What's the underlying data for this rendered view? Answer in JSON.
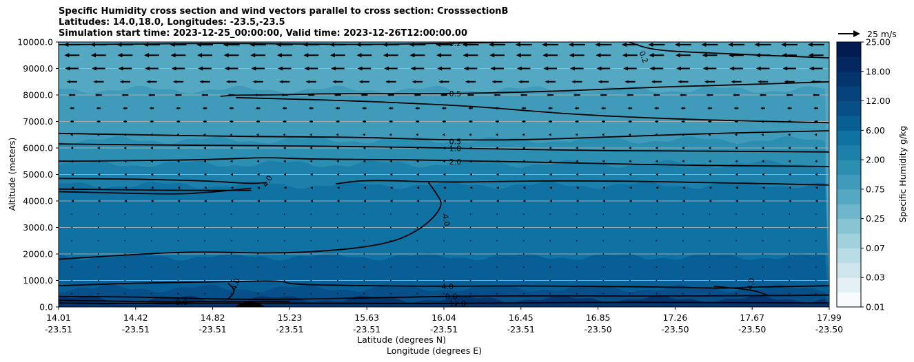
{
  "chart_data": {
    "type": "heatmap",
    "title_lines": [
      "Specific Humidity cross section and wind vectors parallel to cross section: CrosssectionB",
      "Latitudes: 14.0,18.0, Longitudes: -23.5,-23.5",
      "Simulation start time: 2023-12-25_00:00:00, Valid time: 2023-12-26T12:00:00.00"
    ],
    "xlabel_lat": "Latitude (degrees N)",
    "xlabel_lon": "Longitude (degrees E)",
    "ylabel": "Altitude (meters)",
    "ylim": [
      0,
      10000
    ],
    "y_ticks": [
      {
        "value": 0,
        "label": "0.0"
      },
      {
        "value": 1000,
        "label": "1000.0"
      },
      {
        "value": 2000,
        "label": "2000.0"
      },
      {
        "value": 3000,
        "label": "3000.0"
      },
      {
        "value": 4000,
        "label": "4000.0"
      },
      {
        "value": 5000,
        "label": "5000.0"
      },
      {
        "value": 6000,
        "label": "6000.0"
      },
      {
        "value": 7000,
        "label": "7000.0"
      },
      {
        "value": 8000,
        "label": "8000.0"
      },
      {
        "value": 9000,
        "label": "9000.0"
      },
      {
        "value": 10000,
        "label": "10000.0"
      }
    ],
    "x_ticks": [
      {
        "pos": 0.0,
        "lat": "14.01",
        "lon": "-23.51"
      },
      {
        "pos": 0.1,
        "lat": "14.42",
        "lon": "-23.51"
      },
      {
        "pos": 0.2,
        "lat": "14.82",
        "lon": "-23.51"
      },
      {
        "pos": 0.3,
        "lat": "15.23",
        "lon": "-23.51"
      },
      {
        "pos": 0.4,
        "lat": "15.63",
        "lon": "-23.51"
      },
      {
        "pos": 0.5,
        "lat": "16.04",
        "lon": "-23.51"
      },
      {
        "pos": 0.6,
        "lat": "16.45",
        "lon": "-23.51"
      },
      {
        "pos": 0.7,
        "lat": "16.85",
        "lon": "-23.50"
      },
      {
        "pos": 0.8,
        "lat": "17.26",
        "lon": "-23.50"
      },
      {
        "pos": 0.9,
        "lat": "17.67",
        "lon": "-23.50"
      },
      {
        "pos": 1.0,
        "lat": "17.99",
        "lon": "-23.50"
      }
    ],
    "colorbar": {
      "label": "Specific Humidity g/kg",
      "tick_labels": [
        "0.01",
        "0.03",
        "0.07",
        "0.25",
        "0.75",
        "2.00",
        "6.00",
        "12.00",
        "18.00",
        "25.00"
      ],
      "colors": [
        "#f7fbfc",
        "#e3f1f4",
        "#cfe7ec",
        "#b9dde5",
        "#a0d1dd",
        "#87c4d4",
        "#6db6cb",
        "#55a8c1",
        "#3f9bb9",
        "#2c8fb2",
        "#1c80aa",
        "#0f72a3",
        "#075f95",
        "#064f88",
        "#06427b",
        "#05356e",
        "#042761",
        "#031b53"
      ]
    },
    "humidity_layers": [
      {
        "top_m": 10000,
        "color_index": 7
      },
      {
        "top_m": 8200,
        "color_index": 8
      },
      {
        "top_m": 6300,
        "color_index": 9
      },
      {
        "top_m": 5400,
        "color_index": 10
      },
      {
        "top_m": 4600,
        "color_index": 11
      },
      {
        "top_m": 1900,
        "color_index": 12
      },
      {
        "top_m": 700,
        "color_index": 13
      },
      {
        "top_m": 300,
        "color_index": 15
      }
    ],
    "contours": [
      {
        "label": "0.2",
        "points": [
          [
            0.0,
            9900
          ],
          [
            0.1,
            9920
          ],
          [
            0.2,
            9950
          ],
          [
            0.3,
            9930
          ],
          [
            0.4,
            9900
          ],
          [
            0.5,
            9950
          ],
          [
            0.6,
            10000
          ]
        ],
        "label_at": [
          0.505,
          9950
        ]
      },
      {
        "label": "0.2",
        "points": [
          [
            0.74,
            10000
          ],
          [
            0.77,
            9700
          ],
          [
            0.83,
            9600
          ],
          [
            1.0,
            9400
          ]
        ],
        "label_at": [
          0.755,
          9650
        ],
        "label_rotate": 70
      },
      {
        "label": "0.5",
        "points": [
          [
            0.21,
            7950
          ],
          [
            0.23,
            8000
          ],
          [
            0.28,
            8000
          ],
          [
            0.35,
            8050
          ],
          [
            0.45,
            8050
          ],
          [
            0.5,
            8050
          ],
          [
            0.6,
            8100
          ],
          [
            0.7,
            8200
          ],
          [
            0.78,
            8300
          ],
          [
            0.88,
            8380
          ],
          [
            1.0,
            8500
          ]
        ],
        "label_at": [
          0.505,
          8050
        ]
      },
      {
        "label": "0.5",
        "points": [
          [
            0.23,
            7900
          ],
          [
            0.3,
            7850
          ],
          [
            0.38,
            7780
          ],
          [
            0.45,
            7700
          ],
          [
            0.55,
            7550
          ],
          [
            0.65,
            7300
          ],
          [
            0.75,
            7150
          ],
          [
            0.85,
            7050
          ],
          [
            1.0,
            6950
          ]
        ],
        "label_at": null
      },
      {
        "label": "0.5",
        "points": [
          [
            0.0,
            6550
          ],
          [
            0.1,
            6500
          ],
          [
            0.2,
            6450
          ],
          [
            0.3,
            6420
          ],
          [
            0.4,
            6400
          ],
          [
            0.5,
            6300
          ],
          [
            0.6,
            6300
          ],
          [
            0.7,
            6400
          ],
          [
            0.85,
            6550
          ],
          [
            1.0,
            6650
          ]
        ],
        "label_at": [
          0.505,
          6250
        ]
      },
      {
        "label": "1.0",
        "points": [
          [
            0.0,
            6150
          ],
          [
            0.1,
            6120
          ],
          [
            0.2,
            6100
          ],
          [
            0.3,
            6080
          ],
          [
            0.4,
            6050
          ],
          [
            0.5,
            6000
          ],
          [
            0.6,
            5950
          ],
          [
            0.7,
            5900
          ],
          [
            0.85,
            5880
          ],
          [
            1.0,
            5850
          ]
        ],
        "label_at": [
          0.505,
          5990
        ]
      },
      {
        "label": "2.0",
        "points": [
          [
            0.0,
            5500
          ],
          [
            0.1,
            5520
          ],
          [
            0.2,
            5560
          ],
          [
            0.27,
            5650
          ],
          [
            0.32,
            5580
          ],
          [
            0.45,
            5560
          ],
          [
            0.55,
            5500
          ],
          [
            0.65,
            5450
          ],
          [
            0.8,
            5350
          ],
          [
            1.0,
            5300
          ]
        ],
        "label_at": [
          0.505,
          5480
        ]
      },
      {
        "label": "4.0",
        "points": [
          [
            0.0,
            4850
          ],
          [
            0.1,
            4830
          ],
          [
            0.2,
            4750
          ],
          [
            0.25,
            4650
          ],
          [
            0.27,
            4700
          ]
        ],
        "label_at": [
          0.265,
          4550
        ],
        "label_rotate": -60
      },
      {
        "label": "4.0",
        "points": [
          [
            0.0,
            4350
          ],
          [
            0.08,
            4300
          ],
          [
            0.15,
            4250
          ],
          [
            0.2,
            4330
          ],
          [
            0.25,
            4480
          ]
        ],
        "label_at": null
      },
      {
        "label": "4.0",
        "points": [
          [
            0.36,
            4650
          ],
          [
            0.4,
            4800
          ],
          [
            0.5,
            4700
          ],
          [
            0.6,
            4750
          ],
          [
            0.7,
            4760
          ],
          [
            0.85,
            4700
          ],
          [
            1.0,
            4600
          ]
        ],
        "label_at": null
      },
      {
        "label": "4.0",
        "points": [
          [
            0.48,
            4700
          ],
          [
            0.49,
            4300
          ],
          [
            0.5,
            3800
          ],
          [
            0.47,
            2900
          ],
          [
            0.42,
            2300
          ],
          [
            0.3,
            2000
          ],
          [
            0.18,
            2100
          ],
          [
            0.08,
            1950
          ],
          [
            0.0,
            1800
          ]
        ],
        "label_at": [
          0.5,
          3500
        ],
        "label_rotate": 80
      },
      {
        "label": "4.0",
        "points": [
          [
            0.0,
            4450
          ],
          [
            0.15,
            4400
          ],
          [
            0.25,
            4400
          ]
        ],
        "label_at": null
      },
      {
        "label": "4.0",
        "points": [
          [
            0.0,
            800
          ],
          [
            0.1,
            900
          ],
          [
            0.22,
            950
          ],
          [
            0.29,
            1000
          ],
          [
            0.3,
            850
          ],
          [
            0.4,
            800
          ],
          [
            0.5,
            780
          ],
          [
            0.6,
            800
          ],
          [
            0.8,
            750
          ],
          [
            0.86,
            700
          ],
          [
            0.9,
            750
          ],
          [
            1.0,
            800
          ]
        ],
        "label_at": [
          0.495,
          780
        ]
      },
      {
        "label": "4.0",
        "points": [
          [
            0.85,
            780
          ],
          [
            0.9,
            650
          ],
          [
            0.92,
            450
          ]
        ],
        "label_at": [
          0.895,
          650
        ],
        "label_rotate": -80
      },
      {
        "label": "4.0",
        "points": [
          [
            0.22,
            900
          ],
          [
            0.23,
            600
          ],
          [
            0.22,
            300
          ]
        ],
        "label_at": [
          0.225,
          650
        ],
        "label_rotate": -70
      },
      {
        "label": "8.0",
        "points": [
          [
            0.0,
            400
          ],
          [
            0.1,
            380
          ],
          [
            0.2,
            300
          ],
          [
            0.28,
            280
          ],
          [
            0.4,
            340
          ],
          [
            0.5,
            400
          ],
          [
            0.6,
            420
          ],
          [
            0.75,
            410
          ],
          [
            0.9,
            420
          ],
          [
            1.0,
            450
          ]
        ],
        "label_at": [
          0.5,
          400
        ]
      },
      {
        "label": "8.0",
        "points": [
          [
            0.0,
            250
          ],
          [
            0.08,
            220
          ],
          [
            0.15,
            180
          ],
          [
            0.2,
            220
          ],
          [
            0.3,
            200
          ]
        ],
        "label_at": [
          0.15,
          180
        ]
      },
      {
        "label": "12.0",
        "points": [
          [
            0.0,
            150
          ],
          [
            0.1,
            120
          ],
          [
            0.2,
            150
          ],
          [
            0.3,
            140
          ],
          [
            0.4,
            140
          ],
          [
            0.5,
            130
          ],
          [
            0.6,
            160
          ],
          [
            0.75,
            180
          ],
          [
            0.9,
            160
          ],
          [
            1.0,
            150
          ]
        ],
        "label_at": [
          0.505,
          130
        ]
      }
    ],
    "wind_key": {
      "label": "25 m/s",
      "speed": 25
    },
    "wind_vectors": {
      "x_count": 29,
      "rows": [
        {
          "alt_m": 9900,
          "u": -22
        },
        {
          "alt_m": 9500,
          "u": -20
        },
        {
          "alt_m": 9000,
          "u": -18
        },
        {
          "alt_m": 8500,
          "u": -14
        },
        {
          "alt_m": 8000,
          "u": -9
        },
        {
          "alt_m": 7500,
          "u": -6
        },
        {
          "alt_m": 7000,
          "u": -5
        },
        {
          "alt_m": 6500,
          "u": -4
        },
        {
          "alt_m": 6000,
          "u": -3
        },
        {
          "alt_m": 5500,
          "u": -3
        },
        {
          "alt_m": 5000,
          "u": -2
        },
        {
          "alt_m": 4500,
          "u": -1.5
        },
        {
          "alt_m": 4000,
          "u": -1.5
        },
        {
          "alt_m": 3500,
          "u": -1
        },
        {
          "alt_m": 3000,
          "u": -1
        },
        {
          "alt_m": 2500,
          "u": -0.6
        },
        {
          "alt_m": 2000,
          "u": -0.5
        },
        {
          "alt_m": 1500,
          "u": -0.3
        },
        {
          "alt_m": 1000,
          "u": -0.3
        },
        {
          "alt_m": 500,
          "u": -0.2
        }
      ]
    },
    "terrain_peak": {
      "pos": 0.248,
      "height_m": 200
    }
  }
}
